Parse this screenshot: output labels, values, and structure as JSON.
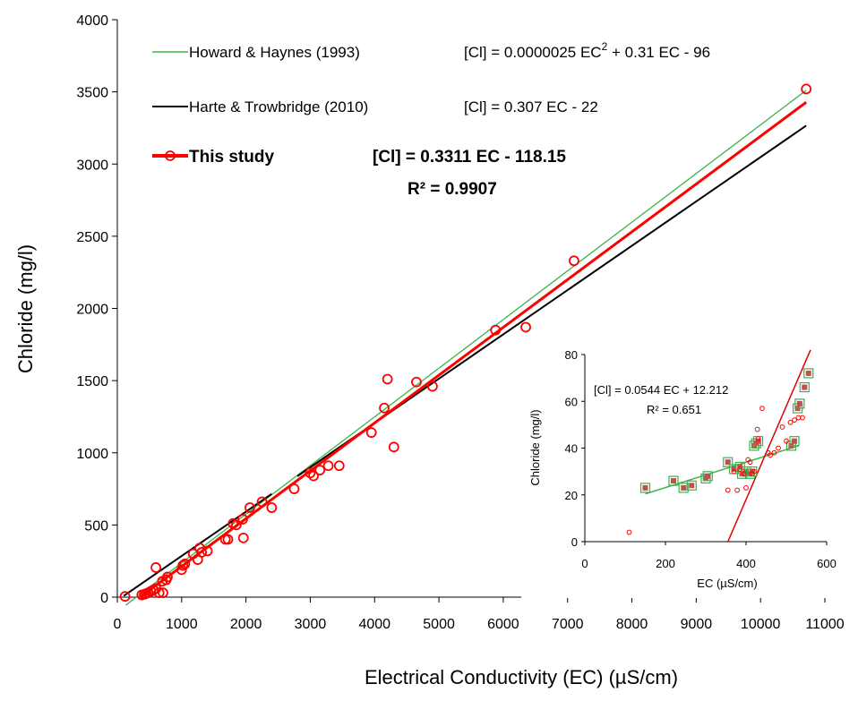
{
  "chart_data": [
    {
      "type": "scatter",
      "xlabel": "Electrical Conductivity  (EC)     (µS/cm)",
      "ylabel": "Chloride    (mg/l)",
      "xlim": [
        0,
        11000
      ],
      "ylim": [
        0,
        4000
      ],
      "xticks": [
        0,
        1000,
        2000,
        3000,
        4000,
        5000,
        6000,
        7000,
        8000,
        9000,
        10000,
        11000
      ],
      "yticks": [
        0,
        500,
        1000,
        1500,
        2000,
        2500,
        3000,
        3500,
        4000
      ],
      "grid": false,
      "legend_position": "top-left",
      "series": [
        {
          "name": "Howard & Haynes (1993)",
          "equation": "[Cl] = 0.0000025 EC",
          "equation_sup": "2",
          "equation_rest": " + 0.31 EC  - 96",
          "kind": "line",
          "color": "#3cb34a",
          "x": [
            130,
            10710
          ],
          "y": [
            -56,
            3511
          ]
        },
        {
          "name": "Harte & Trowbridge (2010)",
          "equation": "[Cl] = 0.307 EC - 22",
          "kind": "line",
          "color": "#000000",
          "segments": [
            {
              "x": [
                100,
                2400
              ],
              "y": [
                9,
                715
              ]
            },
            {
              "x": [
                2800,
                10710
              ],
              "y": [
                838,
                3266
              ]
            }
          ]
        },
        {
          "name": "This study",
          "equation": "[Cl] = 0.3311 EC - 118.15",
          "r2": "R² = 0.9907",
          "kind": "scatter+fit",
          "color": "#ff0000",
          "fit": {
            "x": [
              350,
              10710
            ],
            "y": [
              -2,
              3428
            ]
          },
          "x": [
            120,
            380,
            420,
            450,
            480,
            520,
            560,
            600,
            650,
            700,
            760,
            780,
            600,
            710,
            1000,
            1020,
            1050,
            1180,
            1250,
            1280,
            1310,
            1400,
            1680,
            1720,
            1800,
            1850,
            1950,
            1960,
            2060,
            2250,
            2400,
            2750,
            3000,
            3050,
            3150,
            3280,
            3450,
            3950,
            4150,
            4200,
            4300,
            4650,
            4900,
            5880,
            6350,
            7100,
            10710
          ],
          "y": [
            5,
            15,
            20,
            25,
            30,
            40,
            50,
            60,
            30,
            110,
            120,
            140,
            205,
            30,
            190,
            220,
            230,
            300,
            260,
            340,
            310,
            320,
            400,
            400,
            510,
            500,
            540,
            410,
            620,
            660,
            620,
            750,
            860,
            840,
            880,
            910,
            910,
            1140,
            1310,
            1510,
            1040,
            1490,
            1460,
            1850,
            1870,
            2330,
            3520
          ]
        }
      ]
    },
    {
      "type": "scatter",
      "xlabel": "EC     (µS/cm)",
      "ylabel": "Chloride    (mg/l)",
      "xlim": [
        0,
        600
      ],
      "ylim": [
        0,
        80
      ],
      "xticks": [
        0,
        200,
        400,
        600
      ],
      "yticks": [
        0,
        20,
        40,
        60,
        80
      ],
      "grid": false,
      "equation": "[Cl] = 0.0544 EC + 12.212",
      "r2": "R² = 0.651",
      "green_fit": {
        "x": [
          150,
          530
        ],
        "y": [
          20.4,
          41.0
        ]
      },
      "red_fit": {
        "x": [
          355,
          560
        ],
        "y": [
          0,
          82
        ]
      },
      "squares": {
        "x": [
          150,
          220,
          245,
          265,
          300,
          305,
          355,
          370,
          385,
          390,
          400,
          410,
          415,
          420,
          425,
          430,
          512,
          520,
          528,
          533,
          545,
          555
        ],
        "y": [
          23,
          26,
          23,
          24,
          27,
          28,
          34,
          31,
          32,
          29,
          30,
          29,
          30,
          41,
          42,
          43,
          41,
          43,
          57,
          59,
          66,
          72
        ]
      },
      "circles": {
        "x": [
          110,
          355,
          370,
          378,
          385,
          395,
          400,
          405,
          410,
          415,
          420,
          428,
          430,
          440,
          455,
          460,
          470,
          480,
          490,
          500,
          510,
          520,
          530,
          540
        ],
        "y": [
          4,
          22,
          30,
          22,
          31,
          29,
          23,
          35,
          34,
          29,
          30,
          48,
          44,
          57,
          38,
          37,
          38,
          40,
          49,
          43,
          51,
          52,
          53,
          53
        ]
      }
    }
  ]
}
